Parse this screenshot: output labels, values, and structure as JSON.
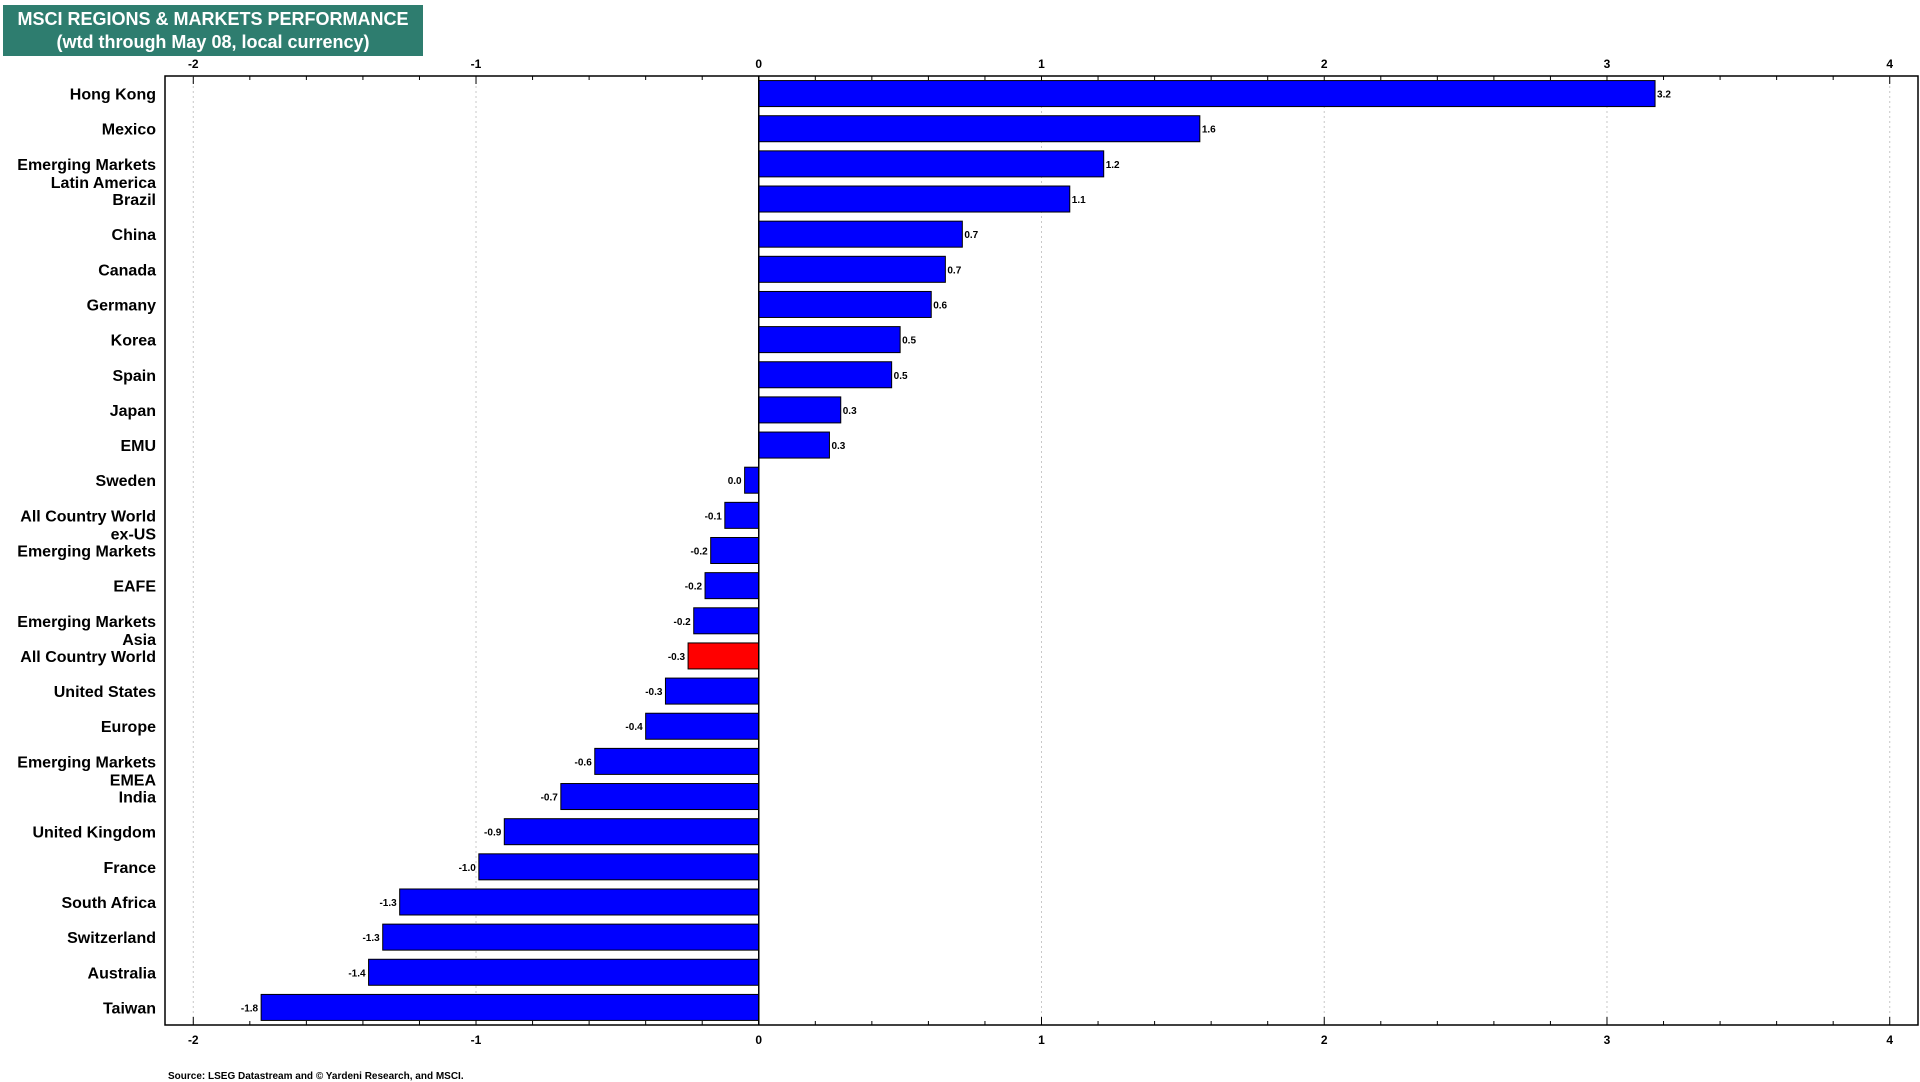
{
  "chart_data": {
    "type": "bar",
    "orientation": "horizontal",
    "title": "MSCI REGIONS & MARKETS PERFORMANCE",
    "subtitle": "(wtd through May 08, local currency)",
    "categories": [
      "Hong Kong",
      "Mexico",
      "Emerging Markets Latin America",
      "Brazil",
      "China",
      "Canada",
      "Germany",
      "Korea",
      "Spain",
      "Japan",
      "EMU",
      "Sweden",
      "All Country World ex-US",
      "Emerging Markets",
      "EAFE",
      "Emerging Markets Asia",
      "All Country World",
      "United States",
      "Europe",
      "Emerging Markets EMEA",
      "India",
      "United Kingdom",
      "France",
      "South Africa",
      "Switzerland",
      "Australia",
      "Taiwan"
    ],
    "values": [
      3.17,
      1.56,
      1.22,
      1.1,
      0.72,
      0.66,
      0.61,
      0.5,
      0.47,
      0.29,
      0.25,
      -0.05,
      -0.12,
      -0.17,
      -0.19,
      -0.23,
      -0.25,
      -0.33,
      -0.4,
      -0.58,
      -0.7,
      -0.9,
      -0.99,
      -1.27,
      -1.33,
      -1.38,
      -1.76
    ],
    "value_labels": [
      "3.2",
      "1.6",
      "1.2",
      "1.1",
      "0.7",
      "0.7",
      "0.6",
      "0.5",
      "0.5",
      "0.3",
      "0.3",
      "0.0",
      "-0.1",
      "-0.2",
      "-0.2",
      "-0.2",
      "-0.3",
      "-0.3",
      "-0.4",
      "-0.6",
      "-0.7",
      "-0.9",
      "-1.0",
      "-1.3",
      "-1.3",
      "-1.4",
      "-1.8"
    ],
    "highlight_index": 16,
    "xlim": [
      -2.1,
      4.1
    ],
    "x_ticks": [
      -2,
      -1,
      0,
      1,
      2,
      3,
      4
    ],
    "x_tick_labels": [
      "-2",
      "-1",
      "0",
      "1",
      "2",
      "3",
      "4"
    ],
    "grid": true,
    "colors": {
      "bar": "#0000ff",
      "highlight": "#ff0000",
      "title_bg": "#2e7d6f"
    }
  },
  "header": {
    "title_line1": "MSCI REGIONS & MARKETS PERFORMANCE",
    "title_line2": "(wtd through May 08, local currency)"
  },
  "footer": {
    "source": "Source: LSEG Datastream and © Yardeni Research, and MSCI."
  }
}
